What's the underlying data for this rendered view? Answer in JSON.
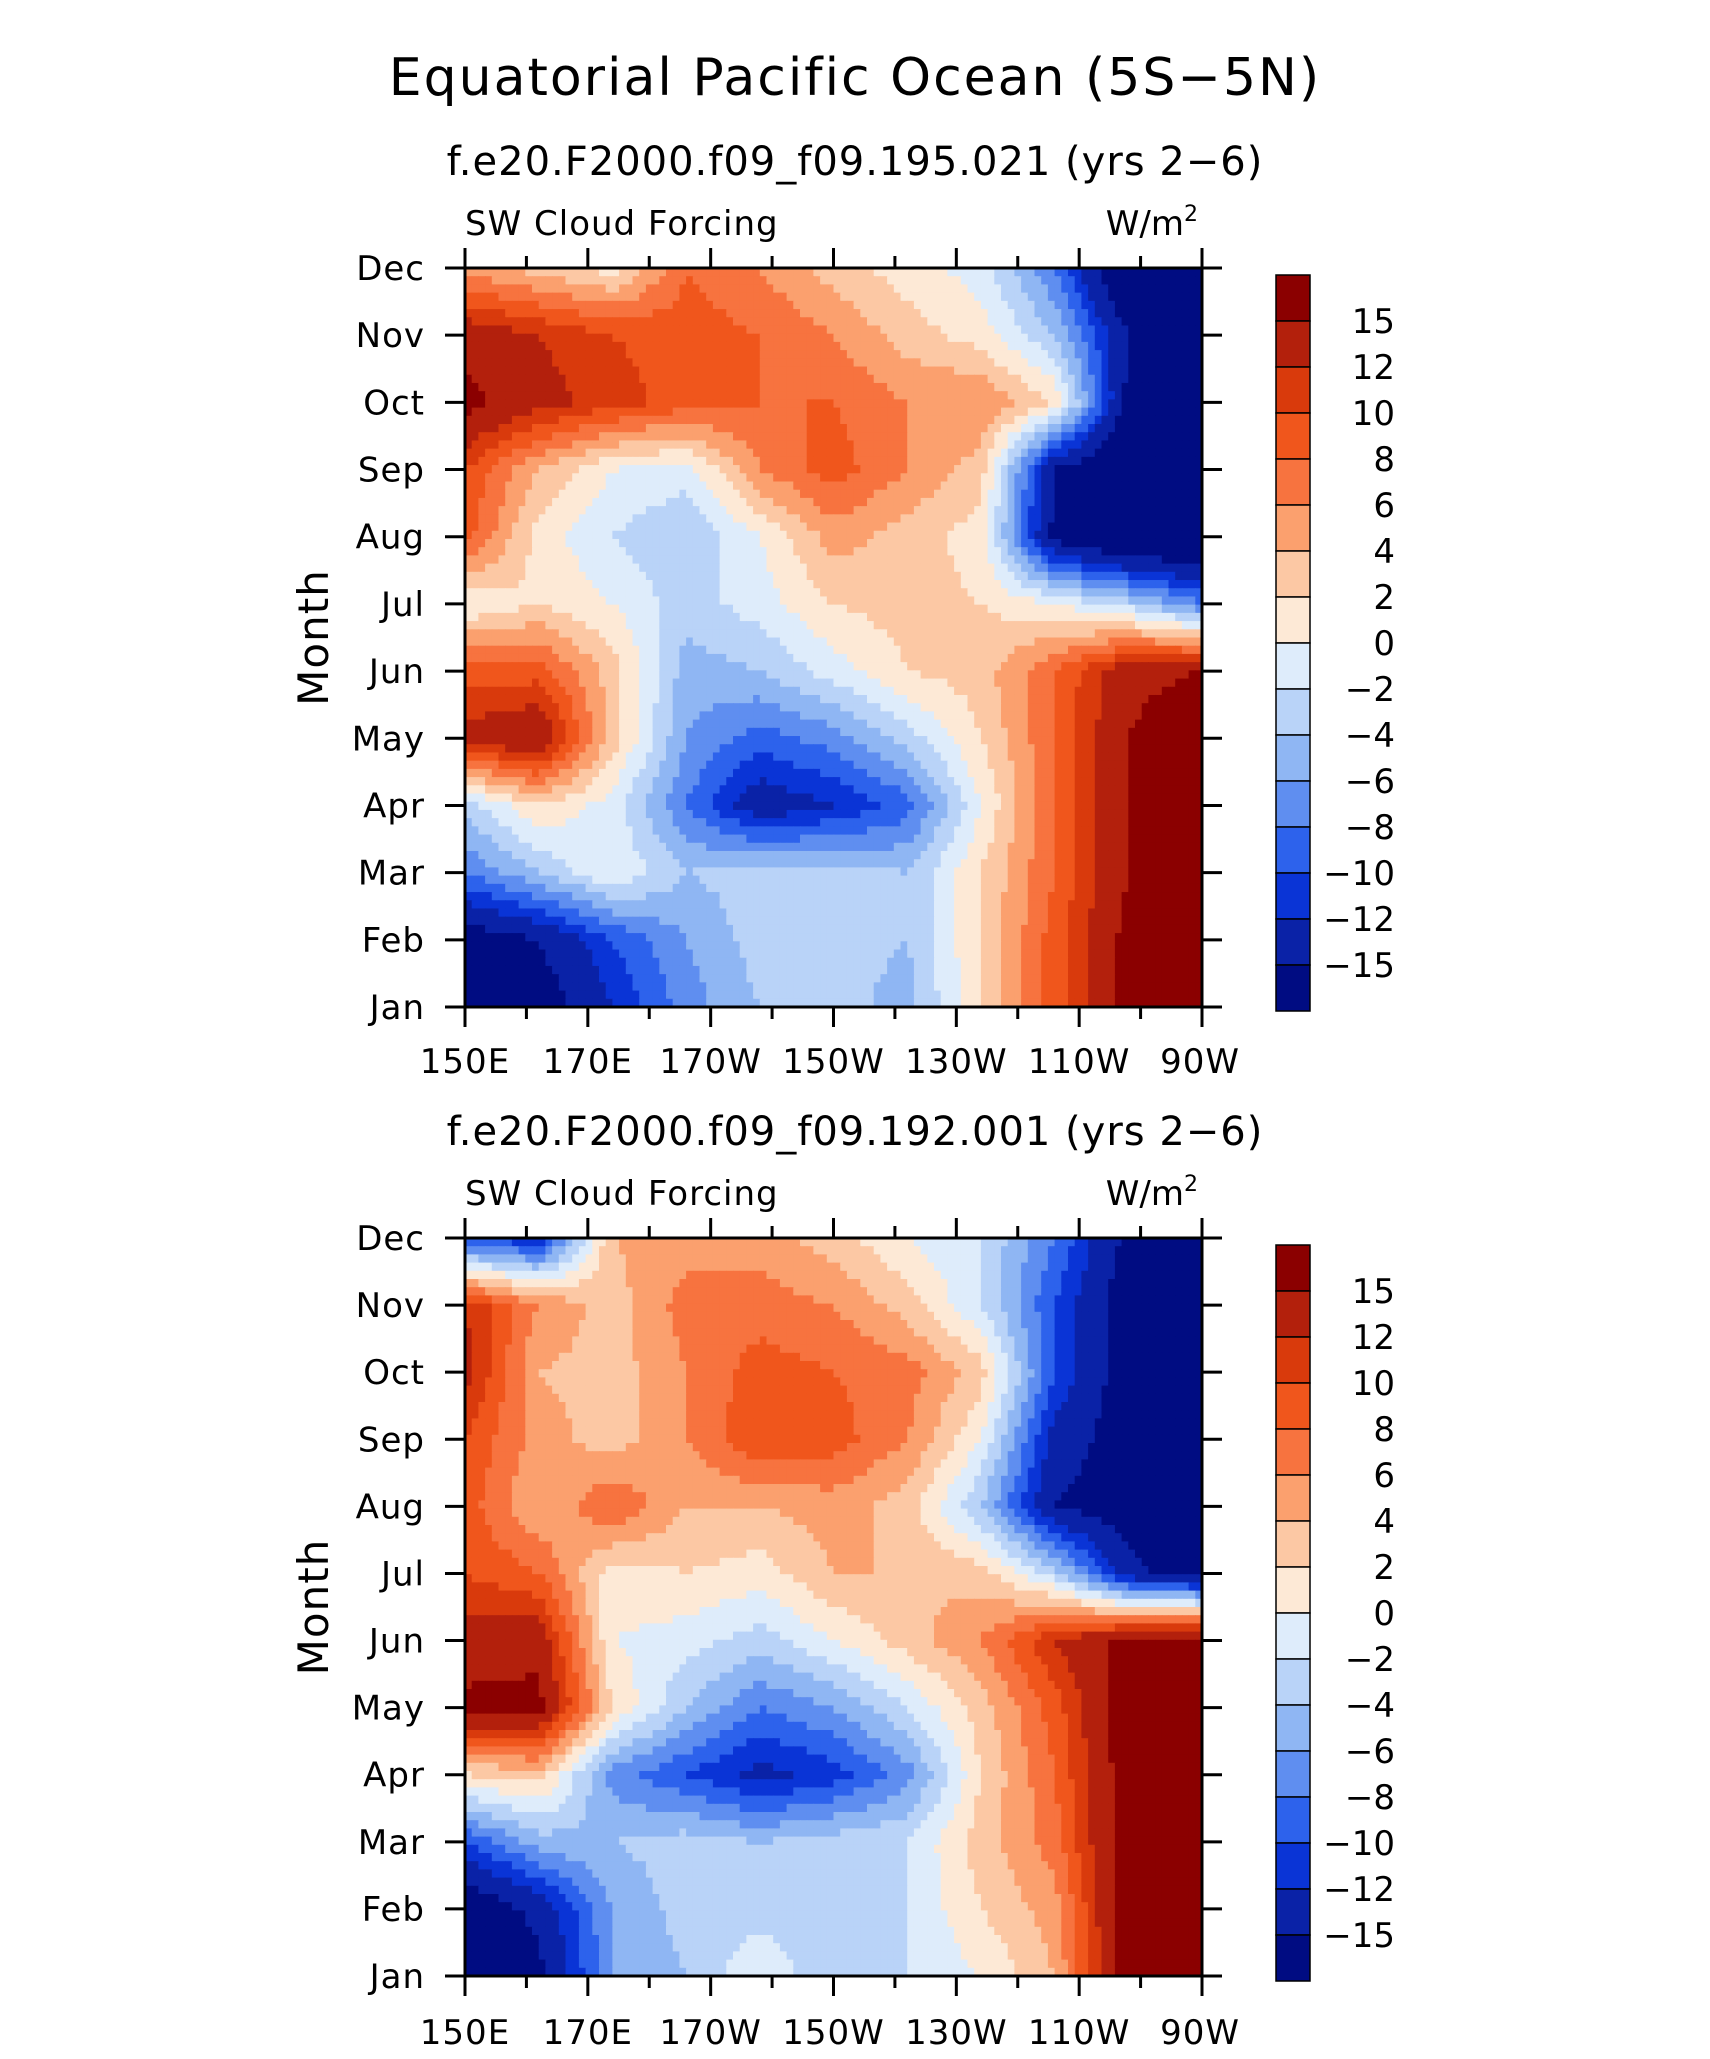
{
  "title": "Equatorial Pacific Ocean (5S−5N)",
  "colorbar": {
    "labels": [
      "15",
      "12",
      "10",
      "8",
      "6",
      "4",
      "2",
      "0",
      "−2",
      "−4",
      "−6",
      "−8",
      "−10",
      "−12",
      "−15"
    ],
    "colors": [
      "#8b0000",
      "#b3200c",
      "#d93a0c",
      "#f0561c",
      "#f7733f",
      "#fba06e",
      "#fcc8a4",
      "#fde9d6",
      "#deecfb",
      "#b9d3f8",
      "#8fb6f3",
      "#5f8ef0",
      "#2d62ec",
      "#0a34d6",
      "#0a22a7",
      "#000c82"
    ]
  },
  "chart_data": [
    {
      "type": "heatmap",
      "title": "f.e20.F2000.f09_f09.195.021 (yrs 2−6)",
      "left_label": "SW Cloud Forcing",
      "units": "W/m",
      "units_sup": "2",
      "ylabel": "Month",
      "x_ticks": [
        "150E",
        "170E",
        "170W",
        "150W",
        "130W",
        "110W",
        "90W"
      ],
      "y_ticks": [
        "Jan",
        "Feb",
        "Mar",
        "Apr",
        "May",
        "Jun",
        "Jul",
        "Aug",
        "Sep",
        "Oct",
        "Nov",
        "Dec"
      ],
      "x_values_lon": [
        150,
        170,
        190,
        210,
        230,
        250,
        270
      ],
      "grid": [
        [
          -20,
          -17,
          -12,
          -7,
          -4,
          -3,
          -5,
          2,
          9,
          16,
          19
        ],
        [
          -17,
          -15,
          -10,
          -6,
          -3,
          -3,
          -4,
          2,
          9,
          16,
          19
        ],
        [
          -8,
          -4,
          0,
          -4,
          -3,
          -3,
          -4,
          2,
          8,
          15,
          19
        ],
        [
          -3,
          2,
          -1,
          -8,
          -14,
          -12,
          -9,
          0,
          8,
          15,
          19
        ],
        [
          13,
          15,
          3,
          -6,
          -9,
          -7,
          -3,
          2,
          8,
          15,
          18
        ],
        [
          9,
          9,
          3,
          -5,
          -4,
          -1,
          2,
          3,
          8,
          14,
          15
        ],
        [
          0,
          2,
          0,
          -3,
          -1,
          2,
          3,
          2,
          0,
          -3,
          -8
        ],
        [
          9,
          1,
          -2,
          -4,
          0,
          5,
          3,
          1,
          -16,
          -20,
          -20
        ],
        [
          10,
          4,
          0,
          -1,
          6,
          9,
          6,
          3,
          -15,
          -20,
          -20
        ],
        [
          16,
          13,
          11,
          9,
          8,
          8,
          6,
          6,
          2,
          -16,
          -20
        ],
        [
          14,
          12,
          10,
          9,
          8,
          6,
          3,
          1,
          -4,
          -15,
          -20
        ],
        [
          5,
          3,
          1,
          8,
          6,
          3,
          1,
          -1,
          -8,
          -20,
          -20
        ]
      ]
    },
    {
      "type": "heatmap",
      "title": "f.e20.F2000.f09_f09.192.001 (yrs 2−6)",
      "left_label": "SW Cloud Forcing",
      "units": "W/m",
      "units_sup": "2",
      "ylabel": "Month",
      "x_ticks": [
        "150E",
        "170E",
        "170W",
        "150W",
        "130W",
        "110W",
        "90W"
      ],
      "y_ticks": [
        "Jan",
        "Feb",
        "Mar",
        "Apr",
        "May",
        "Jun",
        "Jul",
        "Aug",
        "Sep",
        "Oct",
        "Nov",
        "Dec"
      ],
      "x_values_lon": [
        150,
        170,
        190,
        210,
        230,
        250,
        270
      ],
      "grid": [
        [
          -18,
          -16,
          -6,
          -4,
          0,
          -4,
          -2,
          0,
          4,
          17,
          17
        ],
        [
          -18,
          -14,
          -6,
          -3,
          -3,
          -3,
          -2,
          2,
          5,
          17,
          17
        ],
        [
          -10,
          -5,
          -4,
          -3,
          -4,
          -3,
          -2,
          3,
          7,
          17,
          17
        ],
        [
          2,
          3,
          -7,
          -10,
          -13,
          -11,
          -7,
          2,
          8,
          17,
          17
        ],
        [
          16,
          16,
          2,
          -4,
          -8,
          -6,
          -2,
          3,
          9,
          17,
          17
        ],
        [
          13,
          14,
          0,
          -1,
          -3,
          0,
          3,
          6,
          12,
          16,
          17
        ],
        [
          10,
          8,
          1,
          2,
          1,
          4,
          4,
          3,
          -3,
          -14,
          -17
        ],
        [
          9,
          4,
          8,
          4,
          4,
          5,
          3,
          -4,
          -15,
          -17,
          -17
        ],
        [
          10,
          5,
          3,
          6,
          10,
          9,
          6,
          0,
          -13,
          -17,
          -17
        ],
        [
          13,
          4,
          3,
          6,
          9,
          8,
          7,
          3,
          -10,
          -17,
          -17
        ],
        [
          12,
          6,
          3,
          7,
          7,
          6,
          3,
          -2,
          -10,
          -17,
          -17
        ],
        [
          -10,
          -12,
          4,
          5,
          5,
          3,
          0,
          -2,
          -8,
          -16,
          -17
        ]
      ]
    }
  ]
}
